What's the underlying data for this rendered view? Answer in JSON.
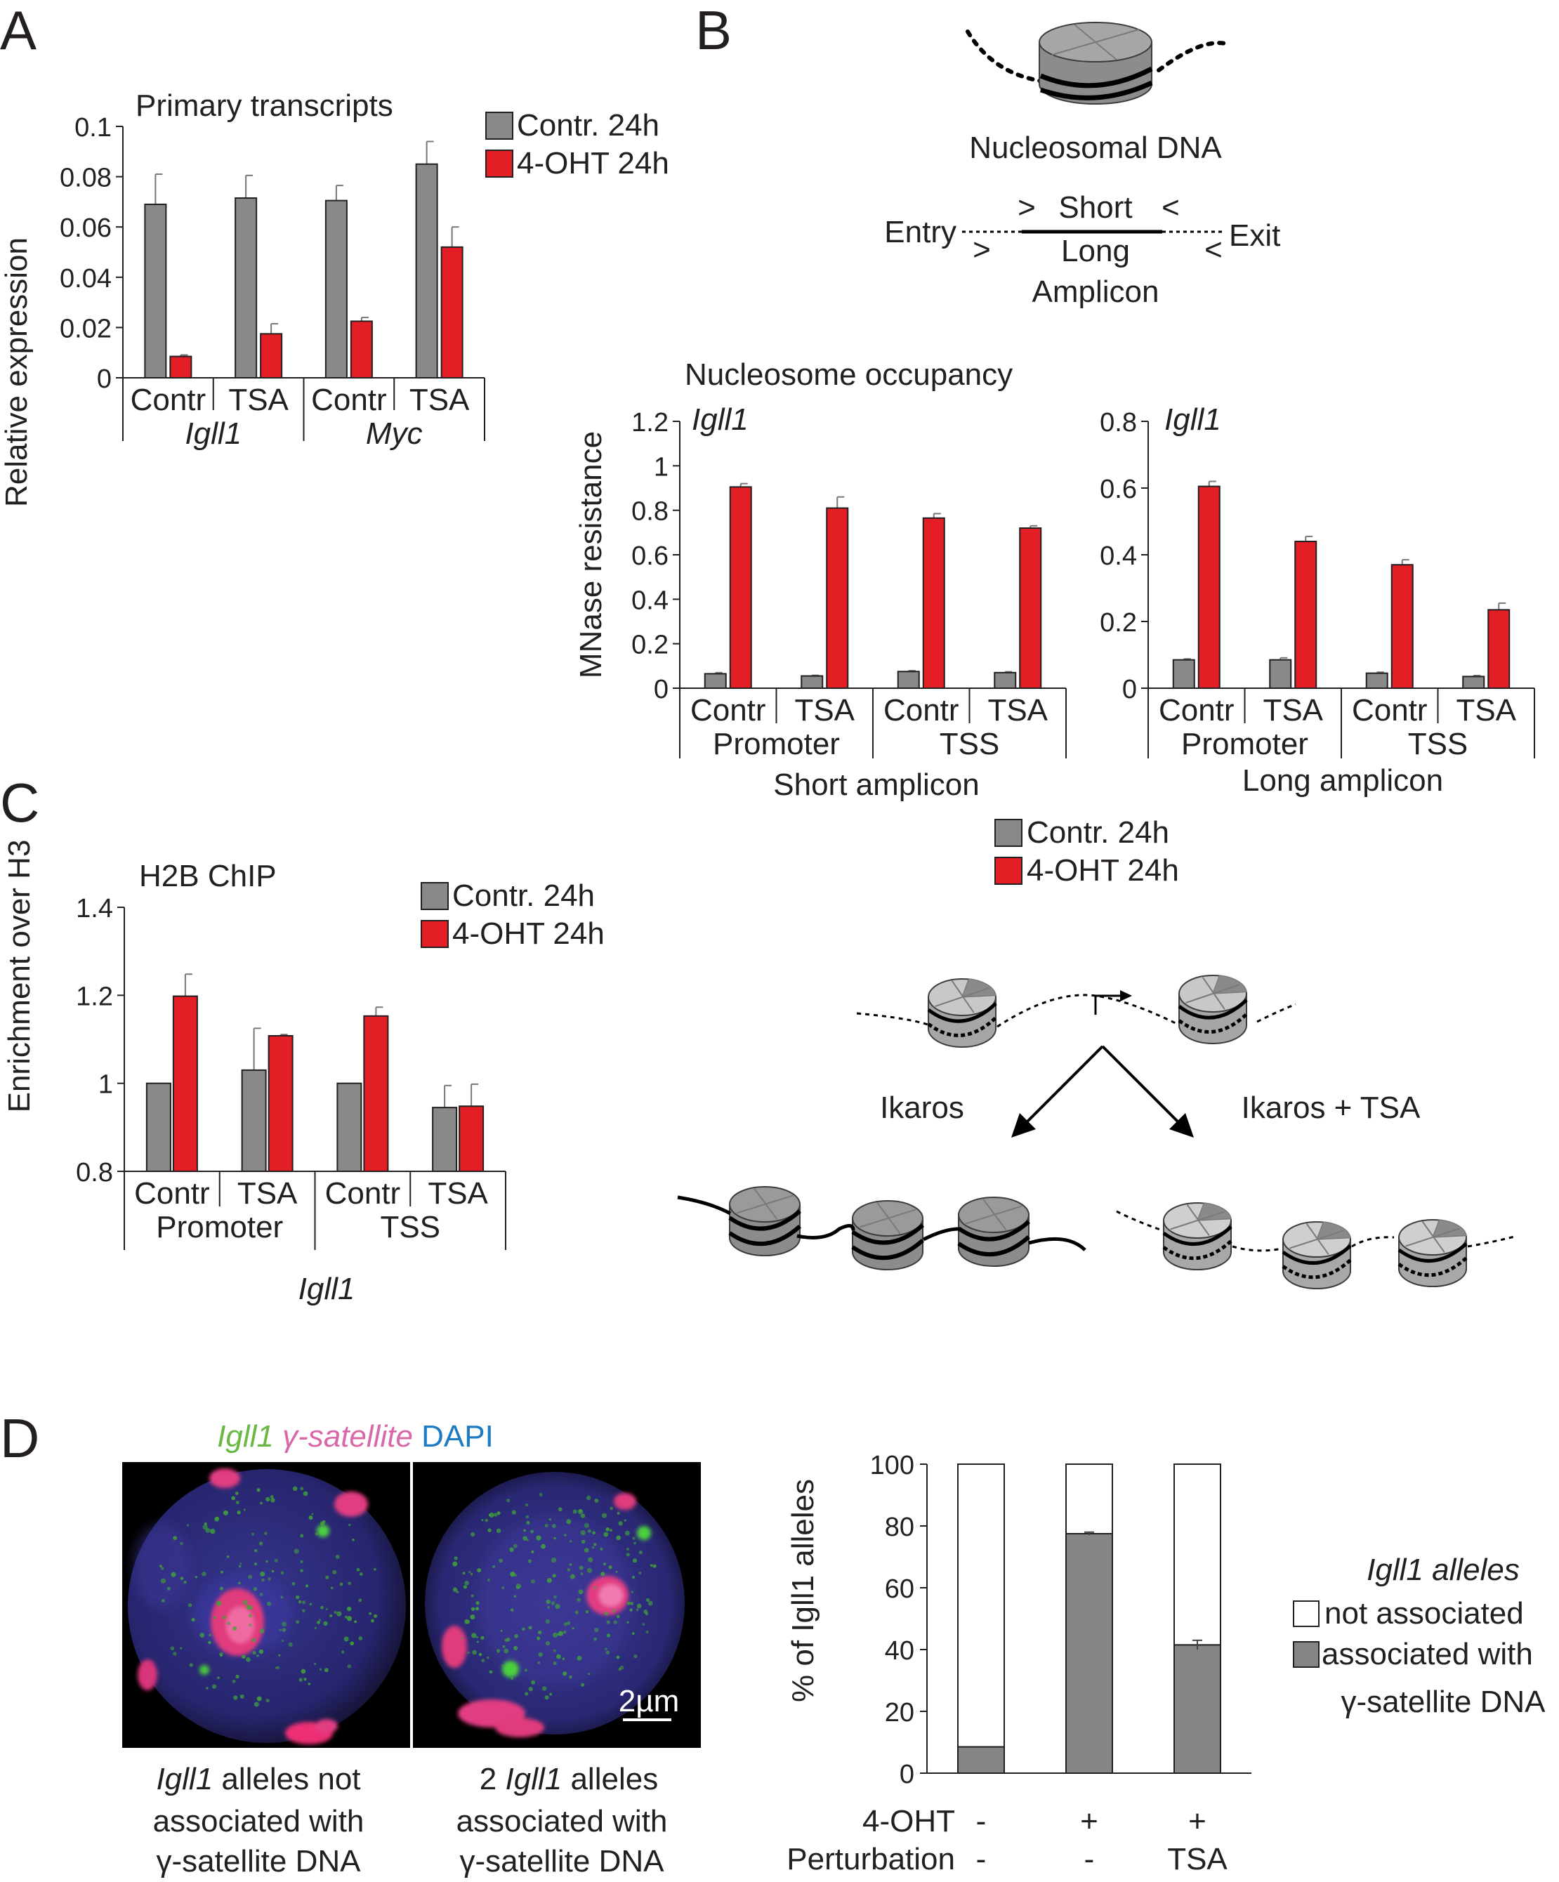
{
  "colors": {
    "contr": "#898989",
    "ohtt": "#e31e24",
    "assoc": "#858585",
    "notassoc": "#ffffff",
    "green": "#6ab844",
    "magenta": "#d868a8",
    "blue": "#1f7bc1"
  },
  "panel_letters": [
    "A",
    "B",
    "C",
    "D"
  ],
  "legend": {
    "contr": "Contr. 24h",
    "oht": "4-OHT 24h"
  },
  "chart_data": [
    {
      "id": "A",
      "type": "bar",
      "title": "Primary transcripts",
      "ylabel": "Relative expression",
      "ylim": [
        0,
        0.1
      ],
      "yticks": [
        "0",
        "0.02",
        "0.04",
        "0.06",
        "0.08",
        "0.1"
      ],
      "categories": [
        "Contr",
        "TSA",
        "Contr",
        "TSA"
      ],
      "groups": [
        "Igll1",
        "Myc"
      ],
      "series": [
        {
          "name": "Contr. 24h",
          "values": [
            0.069,
            0.0715,
            0.0705,
            0.085
          ],
          "errors": [
            0.012,
            0.009,
            0.006,
            0.009
          ]
        },
        {
          "name": "4-OHT 24h",
          "values": [
            0.0085,
            0.0175,
            0.0225,
            0.052
          ],
          "errors": [
            0.0006,
            0.004,
            0.0015,
            0.008
          ]
        }
      ]
    },
    {
      "id": "B1",
      "type": "bar",
      "title": "Nucleosome occupancy",
      "gene": "Igll1",
      "ylabel": "MNase resistance",
      "ylim": [
        0,
        1.2
      ],
      "yticks": [
        "0",
        "0.2",
        "0.4",
        "0.6",
        "0.8",
        "1",
        "1.2"
      ],
      "categories": [
        "Contr",
        "TSA",
        "Contr",
        "TSA"
      ],
      "groups": [
        "Promoter",
        "TSS"
      ],
      "footer": "Short amplicon",
      "series": [
        {
          "name": "Contr. 24h",
          "values": [
            0.065,
            0.055,
            0.075,
            0.07
          ],
          "errors": [
            0.005,
            0.003,
            0.004,
            0.004
          ]
        },
        {
          "name": "4-OHT 24h",
          "values": [
            0.905,
            0.81,
            0.765,
            0.72
          ],
          "errors": [
            0.015,
            0.05,
            0.02,
            0.01
          ]
        }
      ]
    },
    {
      "id": "B2",
      "type": "bar",
      "gene": "Igll1",
      "ylim": [
        0,
        0.8
      ],
      "yticks": [
        "0",
        "0.2",
        "0.4",
        "0.6",
        "0.8"
      ],
      "categories": [
        "Contr",
        "TSA",
        "Contr",
        "TSA"
      ],
      "groups": [
        "Promoter",
        "TSS"
      ],
      "footer": "Long amplicon",
      "series": [
        {
          "name": "Contr. 24h",
          "values": [
            0.085,
            0.085,
            0.045,
            0.035
          ],
          "errors": [
            0.003,
            0.006,
            0.003,
            0.003
          ]
        },
        {
          "name": "4-OHT 24h",
          "values": [
            0.605,
            0.44,
            0.37,
            0.235
          ],
          "errors": [
            0.015,
            0.015,
            0.015,
            0.02
          ]
        }
      ]
    },
    {
      "id": "C",
      "type": "bar",
      "title": "H2B ChIP",
      "ylabel": "Enrichment over H3",
      "ylim": [
        0.8,
        1.4
      ],
      "yticks": [
        "0.8",
        "1",
        "1.2",
        "1.4"
      ],
      "categories": [
        "Contr",
        "TSA",
        "Contr",
        "TSA"
      ],
      "groups": [
        "Promoter",
        "TSS"
      ],
      "footer": "Igll1",
      "series": [
        {
          "name": "Contr. 24h",
          "values": [
            1.0,
            1.03,
            1.0,
            0.945
          ],
          "errors": [
            0,
            0.095,
            0,
            0.05
          ]
        },
        {
          "name": "4-OHT 24h",
          "values": [
            1.198,
            1.108,
            1.153,
            0.948
          ],
          "errors": [
            0.05,
            0.003,
            0.02,
            0.05
          ]
        }
      ]
    },
    {
      "id": "D",
      "type": "bar",
      "stacked": true,
      "ylabel": "% of Igll1 alleles",
      "ylim": [
        0,
        100
      ],
      "yticks": [
        "0",
        "20",
        "40",
        "60",
        "80",
        "100"
      ],
      "rows": [
        {
          "label": "4-OHT",
          "values": [
            "-",
            "+",
            "+"
          ]
        },
        {
          "label": "Perturbation",
          "values": [
            "-",
            "-",
            "TSA"
          ]
        }
      ],
      "legend_title": "Igll1 alleles",
      "series": [
        {
          "name": "associated with γ-satellite DNA",
          "values": [
            8.5,
            77.5,
            41.5
          ],
          "errors": [
            0,
            0.5,
            1.5
          ]
        },
        {
          "name": "not associated",
          "values": [
            91.5,
            22.5,
            58.5
          ]
        }
      ]
    }
  ],
  "panelB": {
    "nucleosomal_dna": "Nucleosomal DNA",
    "entry": "Entry",
    "exit": "Exit",
    "short": "Short",
    "long": "Long",
    "amplicon": "Amplicon",
    "arrow_gt": ">",
    "arrow_lt": "<"
  },
  "model": {
    "ikaros": "Ikaros",
    "ikaros_tsa": "Ikaros + TSA"
  },
  "panelD": {
    "header": {
      "gene": "Igll1",
      "satellite": "γ-satellite",
      "dapi": "DAPI"
    },
    "scale": "2µm",
    "caption_left": [
      "Igll1",
      "alleles not",
      "associated with",
      "γ-satellite DNA"
    ],
    "caption_right": [
      "2",
      "Igll1",
      "alleles",
      "associated with",
      "γ-satellite DNA"
    ]
  }
}
